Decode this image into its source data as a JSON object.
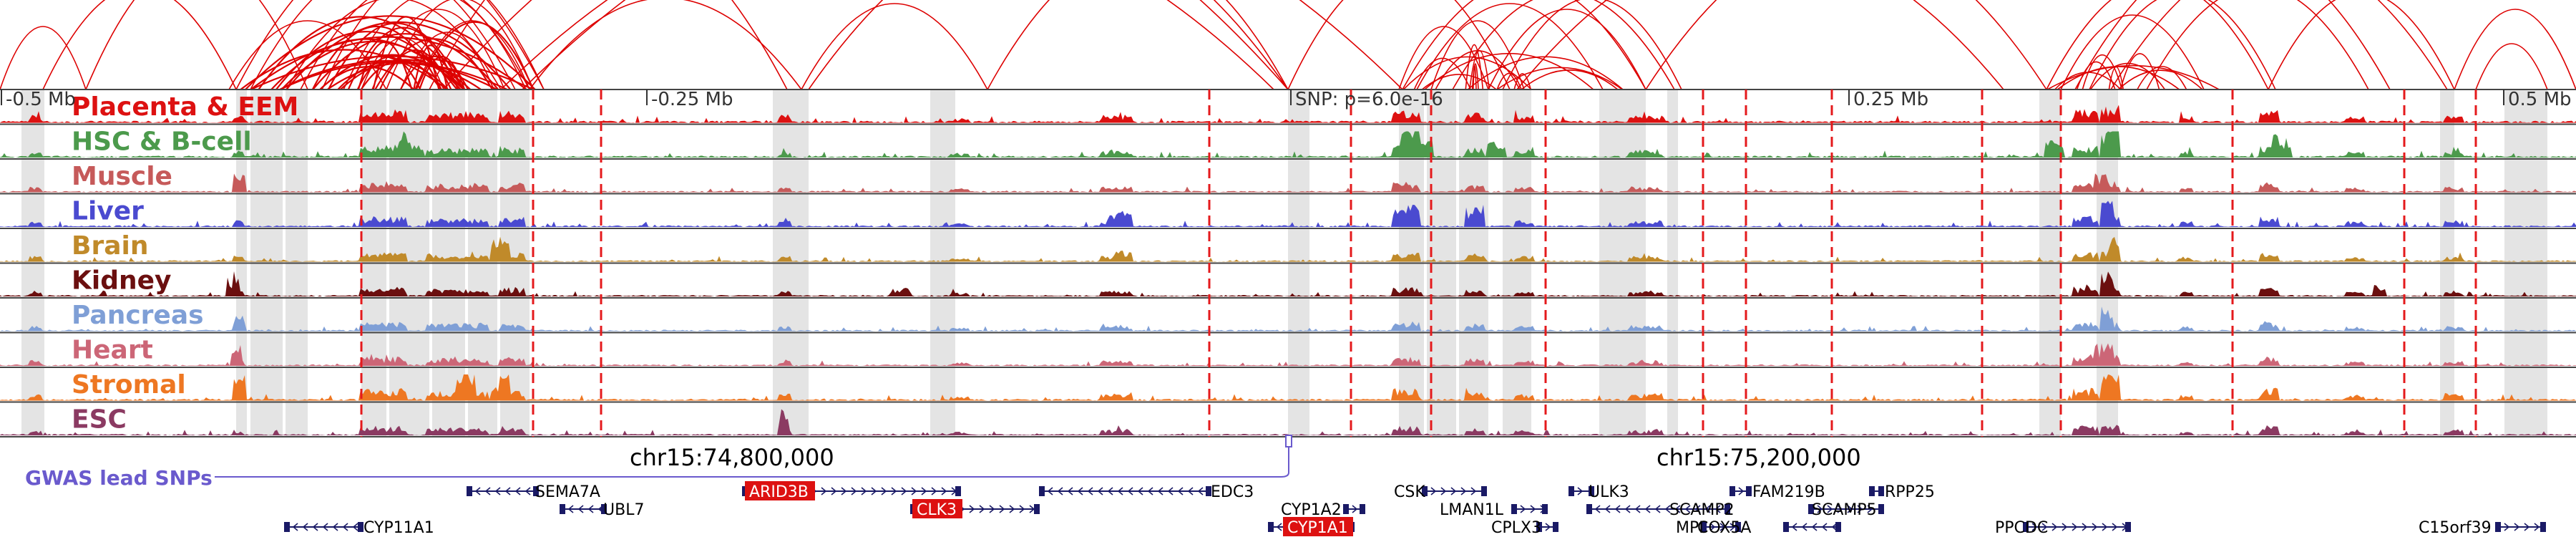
{
  "colors": {
    "loop": "#dd0000",
    "highlight_band": "#e4e4e4",
    "dashed_line": "#e41a1c",
    "track_divider": "#444444",
    "gene_body": "#1a1a66",
    "gene_highlight_bg": "#dd1111",
    "snp_line": "#6a5acd"
  },
  "ruler": {
    "ticks": [
      {
        "label": "-0.5 Mb"
      },
      {
        "label": "-0.25 Mb"
      },
      {
        "label": "SNP: p=6.0e-16"
      },
      {
        "label": "0.25 Mb"
      },
      {
        "label": "0.5 Mb"
      }
    ]
  },
  "tracks": [
    {
      "label": "Placenta & EEM",
      "color": "#dd1111",
      "scale": 1.0
    },
    {
      "label": "HSC & B-cell",
      "color": "#4c9a4c",
      "scale": 0.9
    },
    {
      "label": "Muscle",
      "color": "#c65a5a",
      "scale": 0.7
    },
    {
      "label": "Liver",
      "color": "#4a4ad0",
      "scale": 0.8
    },
    {
      "label": "Brain",
      "color": "#c08a2a",
      "scale": 0.7
    },
    {
      "label": "Kidney",
      "color": "#6b0f0f",
      "scale": 0.7
    },
    {
      "label": "Pancreas",
      "color": "#7f9fd6",
      "scale": 0.7
    },
    {
      "label": "Heart",
      "color": "#cc6677",
      "scale": 0.7
    },
    {
      "label": "Stromal",
      "color": "#ee7722",
      "scale": 0.9
    },
    {
      "label": "ESC",
      "color": "#8b3a62",
      "scale": 0.7
    }
  ],
  "coordinates": [
    {
      "label": "chr15:74,800,000"
    },
    {
      "label": "chr15:75,200,000"
    }
  ],
  "snp": {
    "label": "GWAS lead SNPs"
  },
  "genes": [
    {
      "name": "SEMA7A"
    },
    {
      "name": "UBL7"
    },
    {
      "name": "ARID3B",
      "highlight": true
    },
    {
      "name": "CLK3",
      "highlight": true
    },
    {
      "name": "EDC3"
    },
    {
      "name": "CYP11A1"
    },
    {
      "name": "CYP1A2"
    },
    {
      "name": "CYP1A1",
      "highlight": true
    },
    {
      "name": "CSK"
    },
    {
      "name": "LMAN1L"
    },
    {
      "name": "CPLX3"
    },
    {
      "name": "ULK3"
    },
    {
      "name": "SCAMP2"
    },
    {
      "name": "MPI"
    },
    {
      "name": "FAM219B"
    },
    {
      "name": "SCAMP5"
    },
    {
      "name": "COX5A"
    },
    {
      "name": "RPP25"
    },
    {
      "name": "PPCDC"
    },
    {
      "name": "C15orf39"
    }
  ]
}
